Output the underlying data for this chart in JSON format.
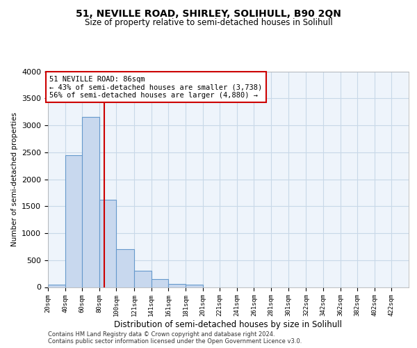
{
  "title1": "51, NEVILLE ROAD, SHIRLEY, SOLIHULL, B90 2QN",
  "title2": "Size of property relative to semi-detached houses in Solihull",
  "xlabel": "Distribution of semi-detached houses by size in Solihull",
  "ylabel": "Number of semi-detached properties",
  "footnote1": "Contains HM Land Registry data © Crown copyright and database right 2024.",
  "footnote2": "Contains public sector information licensed under the Open Government Licence v3.0.",
  "bar_color": "#c8d8ee",
  "bar_edge_color": "#6699cc",
  "grid_color": "#c8d8e8",
  "background_color": "#eef4fb",
  "annotation_box_edge": "#cc0000",
  "vline_color": "#cc0000",
  "property_sqm": 86,
  "annotation_title": "51 NEVILLE ROAD: 86sqm",
  "annotation_line1": "← 43% of semi-detached houses are smaller (3,738)",
  "annotation_line2": "56% of semi-detached houses are larger (4,880) →",
  "bin_labels": [
    "20sqm",
    "40sqm",
    "60sqm",
    "80sqm",
    "100sqm",
    "121sqm",
    "141sqm",
    "161sqm",
    "181sqm",
    "201sqm",
    "221sqm",
    "241sqm",
    "261sqm",
    "281sqm",
    "301sqm",
    "322sqm",
    "342sqm",
    "362sqm",
    "382sqm",
    "402sqm",
    "422sqm"
  ],
  "bin_edges": [
    20,
    40,
    60,
    80,
    100,
    121,
    141,
    161,
    181,
    201,
    221,
    241,
    261,
    281,
    301,
    322,
    342,
    362,
    382,
    402,
    422,
    442
  ],
  "bar_heights": [
    40,
    2450,
    3150,
    1625,
    700,
    300,
    150,
    60,
    50,
    0,
    0,
    0,
    0,
    0,
    0,
    0,
    0,
    0,
    0,
    0,
    0
  ],
  "ylim": [
    0,
    4000
  ],
  "yticks": [
    0,
    500,
    1000,
    1500,
    2000,
    2500,
    3000,
    3500,
    4000
  ]
}
